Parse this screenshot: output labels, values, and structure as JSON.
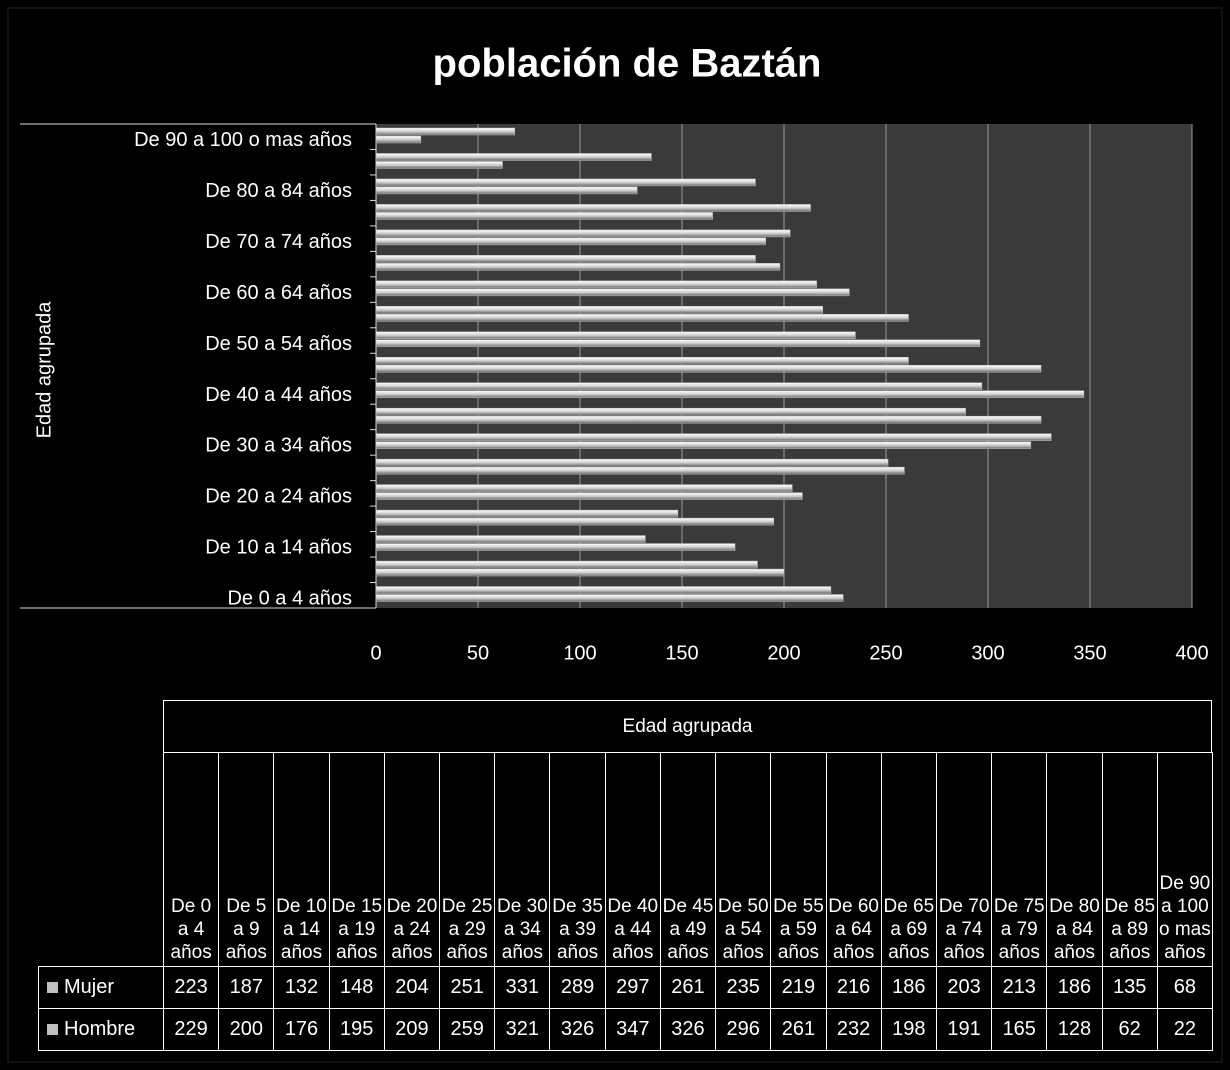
{
  "chart_data": {
    "type": "bar",
    "orientation": "horizontal",
    "title": "población de Baztán",
    "y_label": "Edad agrupada",
    "categories": [
      "De 0 a 4 años",
      "De 5 a 9 años",
      "De 10 a 14 años",
      "De 15 a 19 años",
      "De 20 a 24 años",
      "De 25 a 29 años",
      "De 30 a 34 años",
      "De 35 a 39 años",
      "De 40 a 44 años",
      "De 45 a 49 años",
      "De 50 a 54 años",
      "De 55 a 59 años",
      "De 60 a 64 años",
      "De 65 a 69 años",
      "De 70 a 74 años",
      "De 75 a 79 años",
      "De 80 a 84 años",
      "De 85 a 89 años",
      "De 90 a 100 o mas años"
    ],
    "series": [
      {
        "name": "Mujer",
        "color": "#bfbfbf",
        "values": [
          223,
          187,
          132,
          148,
          204,
          251,
          331,
          289,
          297,
          261,
          235,
          219,
          216,
          186,
          203,
          213,
          186,
          135,
          68
        ]
      },
      {
        "name": "Hombre",
        "color": "#bfbfbf",
        "values": [
          229,
          200,
          176,
          195,
          209,
          259,
          321,
          326,
          347,
          326,
          296,
          261,
          232,
          198,
          191,
          165,
          128,
          62,
          22
        ]
      }
    ],
    "xlim": [
      0,
      400
    ],
    "xticks": [
      0,
      50,
      100,
      150,
      200,
      250,
      300,
      350,
      400
    ],
    "grid": true,
    "data_table": true
  }
}
